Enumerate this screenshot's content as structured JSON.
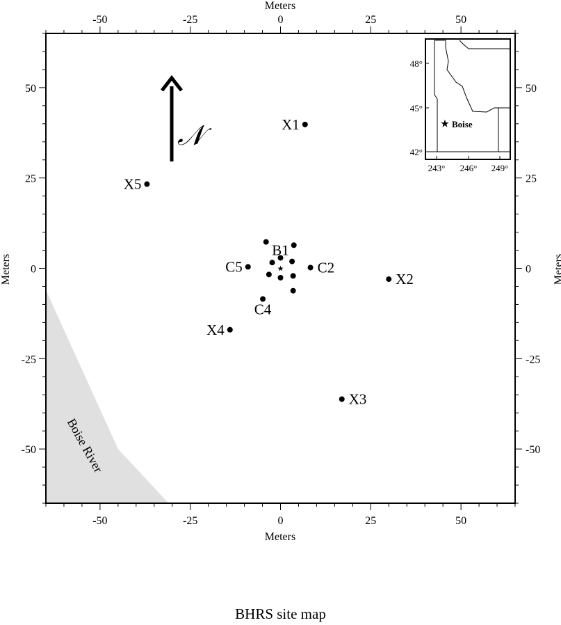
{
  "caption": "BHRS site map",
  "axes": {
    "x_label_top": "Meters",
    "x_label_bottom": "Meters",
    "y_label_left": "Meters",
    "y_label_right": "Meters",
    "xlim": [
      -65,
      65
    ],
    "ylim": [
      -65,
      65
    ],
    "major_ticks": [
      -50,
      -25,
      0,
      25,
      50
    ],
    "major_tick_labels": [
      "-50",
      "-25",
      "0",
      "25",
      "50"
    ],
    "minor_tick_step": 5
  },
  "north_arrow": {
    "label": "𝒩",
    "tail_y": 30,
    "head_y": 53,
    "x": -30
  },
  "river": {
    "label": "Boise River",
    "polygon": [
      [
        -65,
        -6
      ],
      [
        -45,
        -50
      ],
      [
        -31,
        -65
      ],
      [
        -65,
        -65
      ]
    ]
  },
  "wells": [
    {
      "id": "X1",
      "x": 6.8,
      "y": 39.8,
      "label": "X1",
      "label_side": "left"
    },
    {
      "id": "X5",
      "x": -37,
      "y": 23.3,
      "label": "X5",
      "label_side": "left"
    },
    {
      "id": "X2",
      "x": 30,
      "y": -3,
      "label": "X2",
      "label_side": "right"
    },
    {
      "id": "X4",
      "x": -14,
      "y": -17,
      "label": "X4",
      "label_side": "left"
    },
    {
      "id": "X3",
      "x": 17,
      "y": -36.2,
      "label": "X3",
      "label_side": "right"
    },
    {
      "id": "C5",
      "x": -9,
      "y": 0.4,
      "label": "C5",
      "label_side": "left"
    },
    {
      "id": "C2",
      "x": 8.3,
      "y": 0.2,
      "label": "C2",
      "label_side": "right"
    },
    {
      "id": "C4",
      "x": -4.9,
      "y": -8.5,
      "label": "C4",
      "label_side": "below"
    },
    {
      "id": "B1",
      "x": 0,
      "y": 2.9,
      "label": "B1",
      "label_side": "above"
    },
    {
      "id": "A1",
      "x": -4,
      "y": 7.3,
      "label": ""
    },
    {
      "id": "A2",
      "x": 3.7,
      "y": 6.4,
      "label": ""
    },
    {
      "id": "A3",
      "x": -2.3,
      "y": 1.6,
      "label": ""
    },
    {
      "id": "A4",
      "x": 3.2,
      "y": 1.9,
      "label": ""
    },
    {
      "id": "A5",
      "x": -3.2,
      "y": -1.7,
      "label": ""
    },
    {
      "id": "A6",
      "x": 3.5,
      "y": -2.1,
      "label": ""
    },
    {
      "id": "A7",
      "x": 0,
      "y": -2.6,
      "label": ""
    },
    {
      "id": "A8",
      "x": 3.5,
      "y": -6.2,
      "label": ""
    }
  ],
  "center_marker": {
    "x": 0,
    "y": 0,
    "symbol": "★"
  },
  "inset": {
    "lat_ticks": [
      "48°",
      "45°",
      "42°"
    ],
    "lon_ticks": [
      "243°",
      "246°",
      "249°"
    ],
    "lat_range": [
      41,
      49.5
    ],
    "lon_range": [
      241.7,
      250
    ],
    "city": {
      "name": "Boise",
      "lon": 243.8,
      "lat": 43.6,
      "symbol": "★"
    }
  }
}
